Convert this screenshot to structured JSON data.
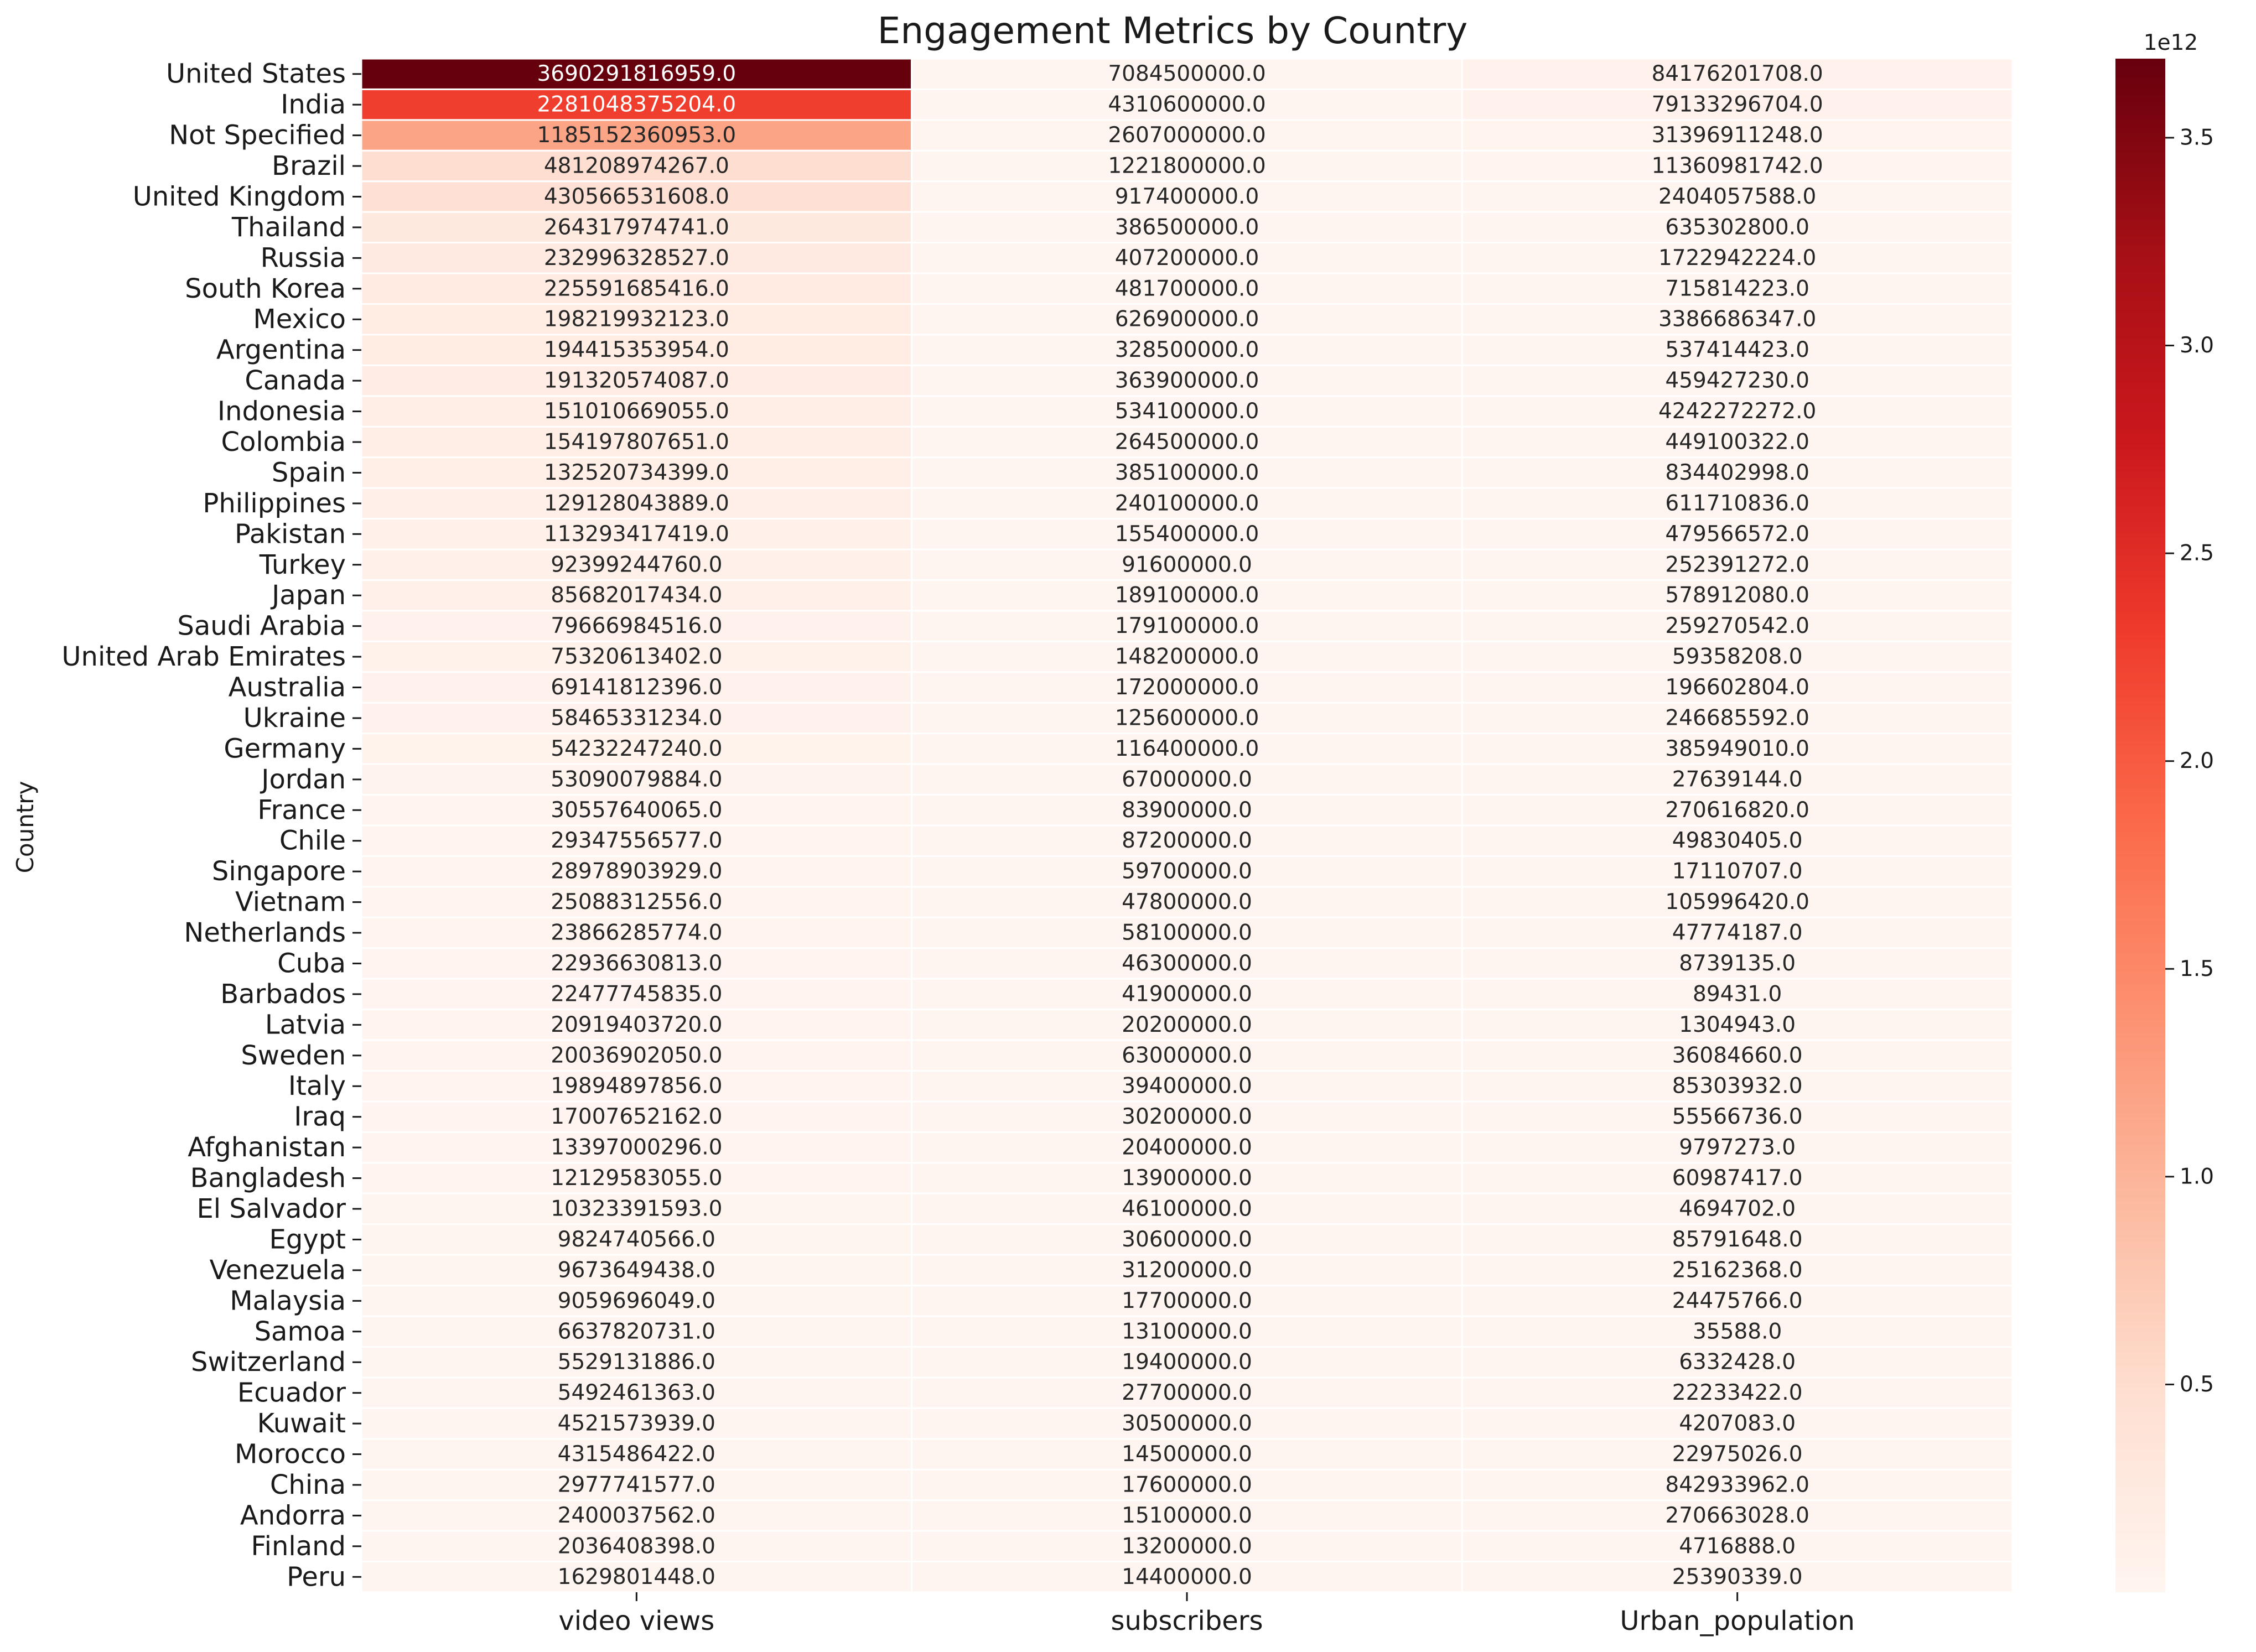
{
  "chart_data": {
    "type": "heatmap",
    "title": "Engagement Metrics by Country",
    "xlabel": "",
    "ylabel": "Country",
    "colormap": "Reds",
    "colors": {
      "low": "#fff5f0",
      "high": "#67000d"
    },
    "columns": [
      "video views",
      "subscribers",
      "Urban_population"
    ],
    "rows": [
      "United States",
      "India",
      "Not Specified",
      "Brazil",
      "United Kingdom",
      "Thailand",
      "Russia",
      "South Korea",
      "Mexico",
      "Argentina",
      "Canada",
      "Indonesia",
      "Colombia",
      "Spain",
      "Philippines",
      "Pakistan",
      "Turkey",
      "Japan",
      "Saudi Arabia",
      "United Arab Emirates",
      "Australia",
      "Ukraine",
      "Germany",
      "Jordan",
      "France",
      "Chile",
      "Singapore",
      "Vietnam",
      "Netherlands",
      "Cuba",
      "Barbados",
      "Latvia",
      "Sweden",
      "Italy",
      "Iraq",
      "Afghanistan",
      "Bangladesh",
      "El Salvador",
      "Egypt",
      "Venezuela",
      "Malaysia",
      "Samoa",
      "Switzerland",
      "Ecuador",
      "Kuwait",
      "Morocco",
      "China",
      "Andorra",
      "Finland",
      "Peru"
    ],
    "values": [
      [
        3690291816959.0,
        7084500000.0,
        84176201708.0
      ],
      [
        2281048375204.0,
        4310600000.0,
        79133296704.0
      ],
      [
        1185152360953.0,
        2607000000.0,
        31396911248.0
      ],
      [
        481208974267.0,
        1221800000.0,
        11360981742.0
      ],
      [
        430566531608.0,
        917400000.0,
        2404057588.0
      ],
      [
        264317974741.0,
        386500000.0,
        635302800.0
      ],
      [
        232996328527.0,
        407200000.0,
        1722942224.0
      ],
      [
        225591685416.0,
        481700000.0,
        715814223.0
      ],
      [
        198219932123.0,
        626900000.0,
        3386686347.0
      ],
      [
        194415353954.0,
        328500000.0,
        537414423.0
      ],
      [
        191320574087.0,
        363900000.0,
        459427230.0
      ],
      [
        151010669055.0,
        534100000.0,
        4242272272.0
      ],
      [
        154197807651.0,
        264500000.0,
        449100322.0
      ],
      [
        132520734399.0,
        385100000.0,
        834402998.0
      ],
      [
        129128043889.0,
        240100000.0,
        611710836.0
      ],
      [
        113293417419.0,
        155400000.0,
        479566572.0
      ],
      [
        92399244760.0,
        91600000.0,
        252391272.0
      ],
      [
        85682017434.0,
        189100000.0,
        578912080.0
      ],
      [
        79666984516.0,
        179100000.0,
        259270542.0
      ],
      [
        75320613402.0,
        148200000.0,
        59358208.0
      ],
      [
        69141812396.0,
        172000000.0,
        196602804.0
      ],
      [
        58465331234.0,
        125600000.0,
        246685592.0
      ],
      [
        54232247240.0,
        116400000.0,
        385949010.0
      ],
      [
        53090079884.0,
        67000000.0,
        27639144.0
      ],
      [
        30557640065.0,
        83900000.0,
        270616820.0
      ],
      [
        29347556577.0,
        87200000.0,
        49830405.0
      ],
      [
        28978903929.0,
        59700000.0,
        17110707.0
      ],
      [
        25088312556.0,
        47800000.0,
        105996420.0
      ],
      [
        23866285774.0,
        58100000.0,
        47774187.0
      ],
      [
        22936630813.0,
        46300000.0,
        8739135.0
      ],
      [
        22477745835.0,
        41900000.0,
        89431.0
      ],
      [
        20919403720.0,
        20200000.0,
        1304943.0
      ],
      [
        20036902050.0,
        63000000.0,
        36084660.0
      ],
      [
        19894897856.0,
        39400000.0,
        85303932.0
      ],
      [
        17007652162.0,
        30200000.0,
        55566736.0
      ],
      [
        13397000296.0,
        20400000.0,
        9797273.0
      ],
      [
        12129583055.0,
        13900000.0,
        60987417.0
      ],
      [
        10323391593.0,
        46100000.0,
        4694702.0
      ],
      [
        9824740566.0,
        30600000.0,
        85791648.0
      ],
      [
        9673649438.0,
        31200000.0,
        25162368.0
      ],
      [
        9059696049.0,
        17700000.0,
        24475766.0
      ],
      [
        6637820731.0,
        13100000.0,
        35588.0
      ],
      [
        5529131886.0,
        19400000.0,
        6332428.0
      ],
      [
        5492461363.0,
        27700000.0,
        22233422.0
      ],
      [
        4521573939.0,
        30500000.0,
        4207083.0
      ],
      [
        4315486422.0,
        14500000.0,
        22975026.0
      ],
      [
        2977741577.0,
        17600000.0,
        842933962.0
      ],
      [
        2400037562.0,
        15100000.0,
        270663028.0
      ],
      [
        2036408398.0,
        13200000.0,
        4716888.0
      ],
      [
        1629801448.0,
        14400000.0,
        25390339.0
      ]
    ],
    "colorbar": {
      "range": [
        0,
        3690291816959.0
      ],
      "ticks": [
        0.5,
        1.0,
        1.5,
        2.0,
        2.5,
        3.0,
        3.5
      ],
      "multiplier_label": "1e12"
    }
  }
}
